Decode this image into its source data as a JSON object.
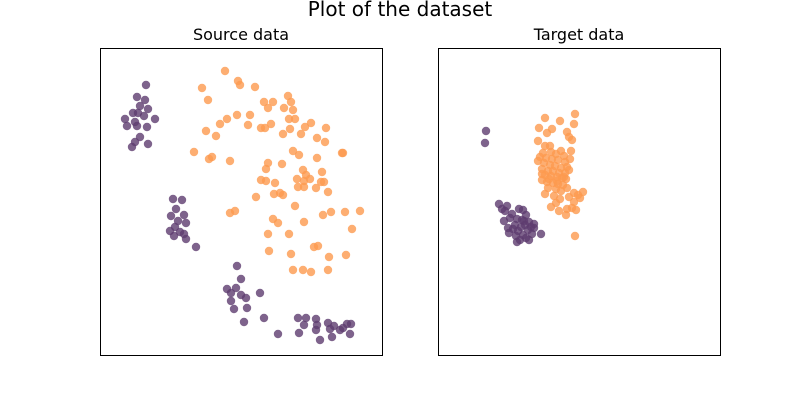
{
  "figure": {
    "title": "Plot of the dataset"
  },
  "colors": {
    "class_0": "#5e3c6f",
    "class_1": "#fd9a4f"
  },
  "chart_data": [
    {
      "type": "scatter",
      "title": "Source data",
      "xlabel": "",
      "ylabel": "",
      "grid": false,
      "ticks": false,
      "xlim": [
        0,
        282
      ],
      "ylim": [
        0,
        307
      ],
      "series": [
        {
          "color_key": "class_0",
          "points": [
            [
              46,
              270
            ],
            [
              37,
              258
            ],
            [
              45,
              255
            ],
            [
              40,
              249
            ],
            [
              33,
              242
            ],
            [
              38,
              242
            ],
            [
              48,
              246
            ],
            [
              25,
              236
            ],
            [
              35,
              233
            ],
            [
              44,
              239
            ],
            [
              55,
              236
            ],
            [
              27,
              229
            ],
            [
              37,
              229
            ],
            [
              47,
              228
            ],
            [
              40,
              218
            ],
            [
              35,
              213
            ],
            [
              48,
              211
            ],
            [
              32,
              208
            ],
            [
              73,
              156
            ],
            [
              82,
              155
            ],
            [
              76,
              146
            ],
            [
              84,
              140
            ],
            [
              71,
              139
            ],
            [
              78,
              134
            ],
            [
              86,
              132
            ],
            [
              75,
              128
            ],
            [
              70,
              124
            ],
            [
              80,
              123
            ],
            [
              74,
              119
            ],
            [
              86,
              116
            ],
            [
              84,
              121
            ],
            [
              96,
              108
            ],
            [
              137,
              89
            ],
            [
              141,
              76
            ],
            [
              127,
              66
            ],
            [
              136,
              67
            ],
            [
              131,
              62
            ],
            [
              141,
              60
            ],
            [
              146,
              57
            ],
            [
              131,
              54
            ],
            [
              160,
              62
            ],
            [
              147,
              47
            ],
            [
              134,
              46
            ],
            [
              164,
              37
            ],
            [
              144,
              33
            ],
            [
              178,
              21
            ],
            [
              198,
              37
            ],
            [
              206,
              37
            ],
            [
              216,
              36
            ],
            [
              204,
              30
            ],
            [
              217,
              30
            ],
            [
              228,
              32
            ],
            [
              234,
              29
            ],
            [
              247,
              31
            ],
            [
              251,
              31
            ],
            [
              216,
              25
            ],
            [
              230,
              26
            ],
            [
              240,
              25
            ],
            [
              250,
              21
            ],
            [
              243,
              27
            ],
            [
              220,
              15
            ],
            [
              199,
              22
            ],
            [
              232,
              18
            ]
          ]
        },
        {
          "color_key": "class_1",
          "points": [
            [
              125,
              284
            ],
            [
              138,
              274
            ],
            [
              140,
              270
            ],
            [
              102,
              267
            ],
            [
              155,
              268
            ],
            [
              188,
              259
            ],
            [
              108,
              255
            ],
            [
              164,
              253
            ],
            [
              173,
              253
            ],
            [
              191,
              253
            ],
            [
              168,
              247
            ],
            [
              184,
              247
            ],
            [
              193,
              245
            ],
            [
              137,
              240
            ],
            [
              150,
              240
            ],
            [
              127,
              236
            ],
            [
              148,
              230
            ],
            [
              120,
              231
            ],
            [
              106,
              224
            ],
            [
              161,
              227
            ],
            [
              165,
              227
            ],
            [
              171,
              231
            ],
            [
              189,
              236
            ],
            [
              195,
              236
            ],
            [
              211,
              232
            ],
            [
              190,
              226
            ],
            [
              205,
              228
            ],
            [
              226,
              227
            ],
            [
              116,
              219
            ],
            [
              183,
              221
            ],
            [
              201,
              221
            ],
            [
              217,
              217
            ],
            [
              225,
              213
            ],
            [
              193,
              204
            ],
            [
              109,
              196
            ],
            [
              112,
              198
            ],
            [
              199,
              200
            ],
            [
              217,
              197
            ],
            [
              242,
              202
            ],
            [
              243,
              202
            ],
            [
              94,
              203
            ],
            [
              130,
              194
            ],
            [
              168,
              192
            ],
            [
              182,
              191
            ],
            [
              203,
              185
            ],
            [
              222,
              183
            ],
            [
              166,
              186
            ],
            [
              197,
              176
            ],
            [
              204,
              174
            ],
            [
              206,
              180
            ],
            [
              210,
              176
            ],
            [
              161,
              175
            ],
            [
              166,
              174
            ],
            [
              221,
              173
            ],
            [
              175,
              172
            ],
            [
              204,
              168
            ],
            [
              216,
              167
            ],
            [
              224,
              173
            ],
            [
              180,
              162
            ],
            [
              228,
              163
            ],
            [
              198,
              168
            ],
            [
              156,
              158
            ],
            [
              174,
              161
            ],
            [
              183,
              160
            ],
            [
              135,
              144
            ],
            [
              195,
              149
            ],
            [
              223,
              140
            ],
            [
              231,
              143
            ],
            [
              245,
              143
            ],
            [
              260,
              144
            ],
            [
              130,
              142
            ],
            [
              173,
              136
            ],
            [
              178,
              132
            ],
            [
              204,
              133
            ],
            [
              168,
              121
            ],
            [
              189,
              121
            ],
            [
              252,
              126
            ],
            [
              169,
              104
            ],
            [
              191,
              101
            ],
            [
              246,
              100
            ],
            [
              214,
              108
            ],
            [
              218,
              109
            ],
            [
              229,
              98
            ],
            [
              193,
              85
            ],
            [
              228,
              85
            ],
            [
              203,
              85
            ],
            [
              211,
              83
            ]
          ]
        }
      ]
    },
    {
      "type": "scatter",
      "title": "Target data",
      "xlabel": "",
      "ylabel": "",
      "grid": false,
      "ticks": false,
      "xlim": [
        0,
        282
      ],
      "ylim": [
        0,
        307
      ],
      "series": [
        {
          "color_key": "class_0",
          "points": [
            [
              48,
              224
            ],
            [
              47,
              212
            ],
            [
              61,
              151
            ],
            [
              64,
              146
            ],
            [
              67,
              144
            ],
            [
              69,
              149
            ],
            [
              74,
              141
            ],
            [
              81,
              146
            ],
            [
              84,
              135
            ],
            [
              88,
              140
            ],
            [
              72,
              137
            ],
            [
              79,
              136
            ],
            [
              77,
              130
            ],
            [
              83,
              128
            ],
            [
              86,
              134
            ],
            [
              91,
              133
            ],
            [
              75,
              126
            ],
            [
              80,
              124
            ],
            [
              71,
              122
            ],
            [
              85,
              120
            ],
            [
              90,
              125
            ],
            [
              93,
              128
            ],
            [
              96,
              127
            ],
            [
              88,
              117
            ],
            [
              82,
              115
            ],
            [
              78,
              119
            ],
            [
              94,
              121
            ],
            [
              103,
              121
            ],
            [
              79,
              113
            ],
            [
              91,
              115
            ],
            [
              96,
              131
            ],
            [
              66,
              134
            ],
            [
              70,
              127
            ],
            [
              87,
              130
            ],
            [
              85,
              145
            ]
          ]
        },
        {
          "color_key": "class_1",
          "points": [
            [
              107,
              237
            ],
            [
              137,
              241
            ],
            [
              136,
              231
            ],
            [
              122,
              234
            ],
            [
              101,
              227
            ],
            [
              109,
              222
            ],
            [
              114,
              226
            ],
            [
              129,
              223
            ],
            [
              131,
              218
            ],
            [
              100,
              214
            ],
            [
              134,
              215
            ],
            [
              107,
              209
            ],
            [
              112,
              209
            ],
            [
              123,
              204
            ],
            [
              133,
              204
            ],
            [
              105,
              202
            ],
            [
              113,
              203
            ],
            [
              118,
              201
            ],
            [
              126,
              199
            ],
            [
              102,
              198
            ],
            [
              108,
              197
            ],
            [
              114,
              196
            ],
            [
              120,
              195
            ],
            [
              127,
              193
            ],
            [
              132,
              196
            ],
            [
              100,
              194
            ],
            [
              106,
              192
            ],
            [
              112,
              190
            ],
            [
              117,
              189
            ],
            [
              123,
              187
            ],
            [
              129,
              188
            ],
            [
              104,
              186
            ],
            [
              110,
              184
            ],
            [
              115,
              184
            ],
            [
              121,
              182
            ],
            [
              127,
              182
            ],
            [
              131,
              185
            ],
            [
              107,
              180
            ],
            [
              113,
              179
            ],
            [
              119,
              178
            ],
            [
              124,
              177
            ],
            [
              128,
              176
            ],
            [
              104,
              175
            ],
            [
              109,
              173
            ],
            [
              115,
              172
            ],
            [
              120,
              171
            ],
            [
              125,
              170
            ],
            [
              110,
              167
            ],
            [
              118,
              166
            ],
            [
              123,
              164
            ],
            [
              129,
              167
            ],
            [
              107,
              161
            ],
            [
              116,
              159
            ],
            [
              122,
              156
            ],
            [
              131,
              158
            ],
            [
              118,
              152
            ],
            [
              113,
              148
            ],
            [
              136,
              162
            ],
            [
              140,
              160
            ],
            [
              145,
              163
            ],
            [
              136,
              153
            ],
            [
              142,
              157
            ],
            [
              121,
              144
            ],
            [
              129,
              146
            ],
            [
              134,
              147
            ],
            [
              138,
              145
            ],
            [
              128,
              140
            ],
            [
              137,
              119
            ],
            [
              104,
              181
            ],
            [
              126,
              178
            ],
            [
              111,
              176
            ],
            [
              119,
              174
            ]
          ]
        }
      ]
    }
  ]
}
